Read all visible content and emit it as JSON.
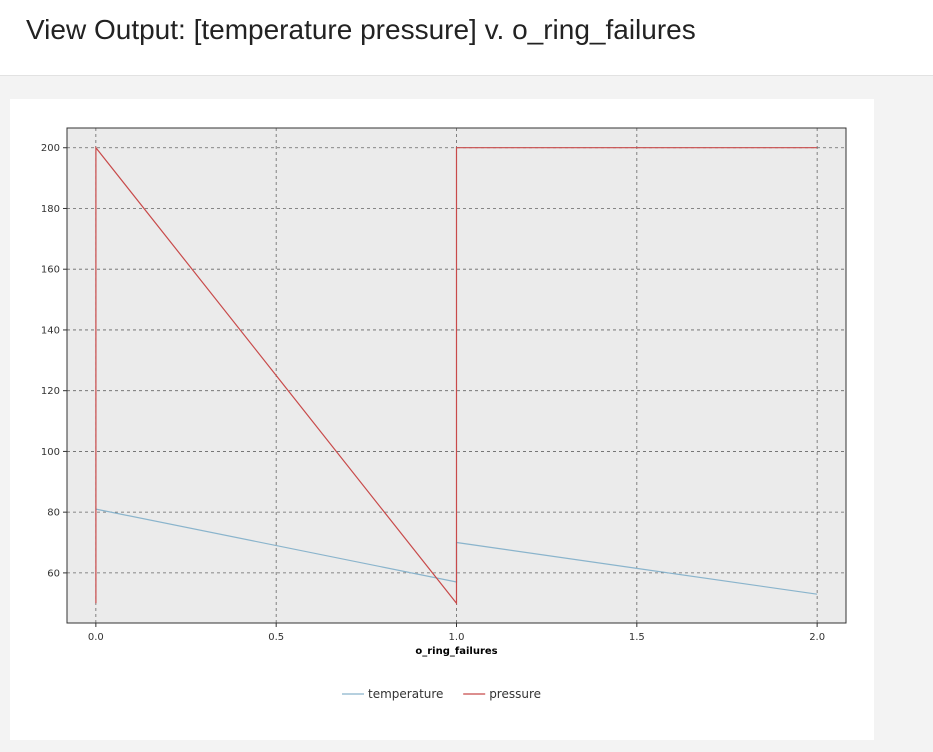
{
  "page": {
    "title": "View Output: [temperature pressure] v. o_ring_failures"
  },
  "chart_data": {
    "type": "line",
    "xlabel": "o_ring_failures",
    "ylabel": "",
    "xlim": [
      -0.08,
      2.08
    ],
    "ylim": [
      43.5,
      206.5
    ],
    "x_ticks": [
      0.0,
      0.5,
      1.0,
      1.5,
      2.0
    ],
    "x_tick_labels": [
      "0.0",
      "0.5",
      "1.0",
      "1.5",
      "2.0"
    ],
    "y_ticks": [
      60,
      80,
      100,
      120,
      140,
      160,
      180,
      200
    ],
    "y_tick_labels": [
      "60",
      "80",
      "100",
      "120",
      "140",
      "160",
      "180",
      "200"
    ],
    "grid": true,
    "legend_position": "bottom",
    "series": [
      {
        "name": "temperature",
        "color": "#8ab4cc",
        "points": [
          [
            0.0,
            81
          ],
          [
            1.0,
            57
          ],
          [
            1.0,
            70
          ],
          [
            2.0,
            53
          ]
        ]
      },
      {
        "name": "pressure",
        "color": "#c84a4a",
        "points": [
          [
            0.0,
            50
          ],
          [
            0.0,
            200
          ],
          [
            1.0,
            50
          ],
          [
            1.0,
            200
          ],
          [
            2.0,
            200
          ]
        ]
      }
    ],
    "plot_background": "#ebebeb"
  }
}
